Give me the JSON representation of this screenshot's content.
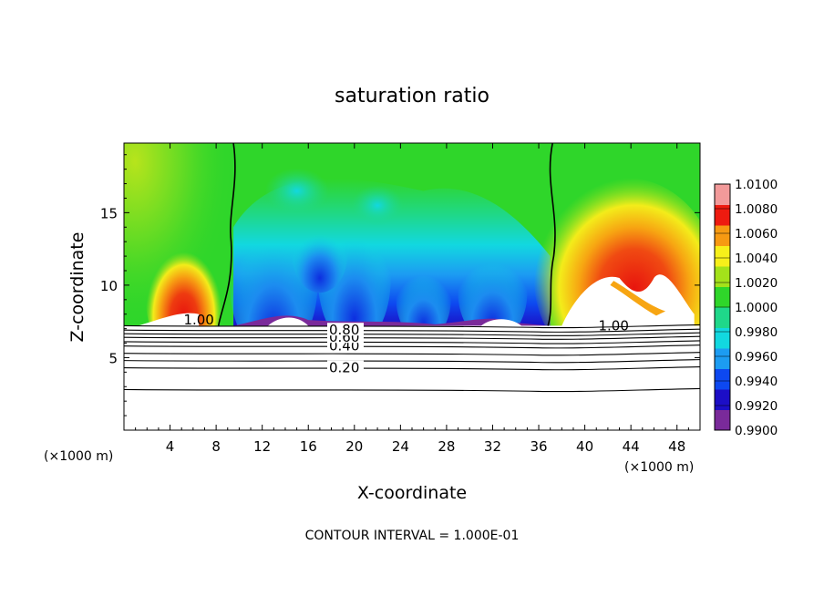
{
  "chart_data": {
    "type": "heatmap",
    "title": "saturation ratio",
    "xlabel": "X-coordinate",
    "ylabel": "Z-coordinate",
    "x_unit_left": "(×1000 m)",
    "x_unit_right": "(×1000 m)",
    "footer": "CONTOUR INTERVAL = 1.000E-01",
    "xlim": [
      0,
      50
    ],
    "ylim": [
      0,
      19.8
    ],
    "x_ticks": [
      4,
      8,
      12,
      16,
      20,
      24,
      28,
      32,
      36,
      40,
      44,
      48
    ],
    "y_ticks": [
      5,
      10,
      15
    ],
    "colorbar": {
      "labels": [
        "1.0100",
        "1.0080",
        "1.0060",
        "1.0040",
        "1.0020",
        "1.0000",
        "0.9980",
        "0.9960",
        "0.9940",
        "0.9920",
        "0.9900"
      ],
      "range": [
        0.99,
        1.01
      ],
      "colors": [
        "#7a2a9a",
        "#1c0ec6",
        "#0d48f0",
        "#1c9cf2",
        "#12d8e0",
        "#1fd88a",
        "#2fd62a",
        "#a4e21a",
        "#f7f01a",
        "#f79a12",
        "#ee1b10",
        "#f29a9a"
      ]
    },
    "contour_levels": [
      {
        "value": 0.2,
        "label": "0.20",
        "z": 4.3
      },
      {
        "value": 0.4,
        "label": "0.40",
        "z": 5.8
      },
      {
        "value": 0.6,
        "label": "0.60",
        "z": 6.4
      },
      {
        "value": 0.8,
        "label": "0.80",
        "z": 6.9
      },
      {
        "value": 1.0,
        "label": "1.00",
        "z": 7.2
      }
    ],
    "extra_contour_z": [
      2.8,
      4.8,
      5.3,
      6.1,
      6.65
    ],
    "unlabeled_contour_z": [
      2.8
    ],
    "contour_1_00_labels": [
      {
        "text": "1.00",
        "x": 6.5,
        "z": 7.6
      },
      {
        "text": "1.00",
        "x": 42.5,
        "z": 7.2
      }
    ],
    "cloud_base_z": 7.2,
    "cloud_top_z": 19.8,
    "boundary_left_x": 9.5,
    "boundary_right_x": 37.0
  }
}
